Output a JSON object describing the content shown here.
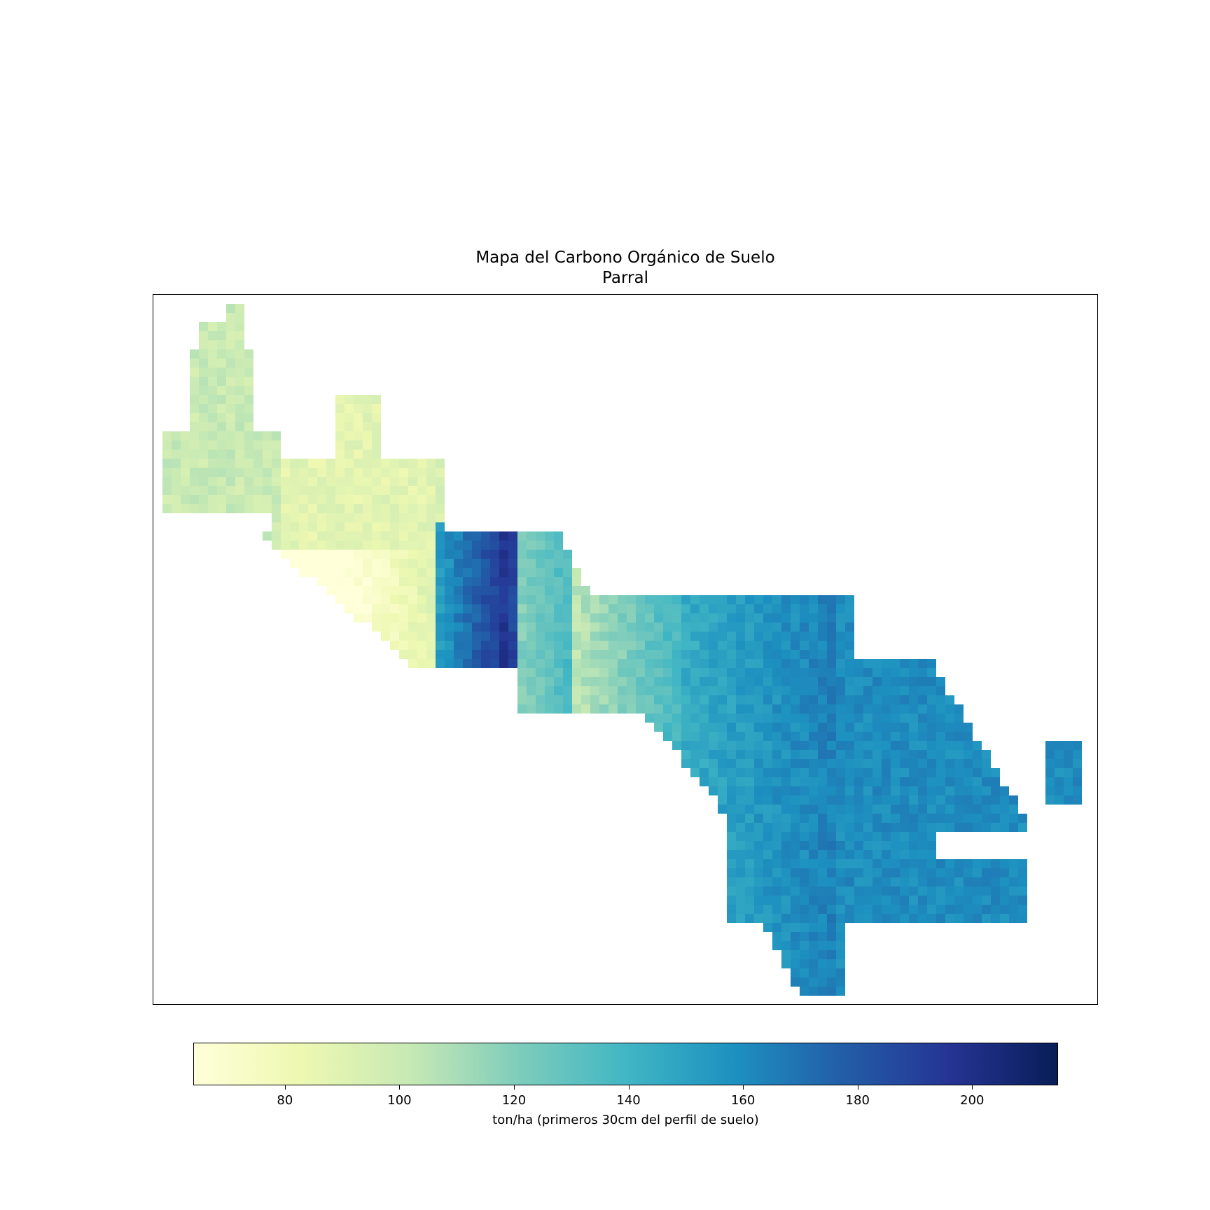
{
  "title": "Mapa del Carbono Orgánico de Suelo",
  "subtitle": "Parral",
  "colorbar": {
    "label": "ton/ha (primeros 30cm del perfil de suelo)",
    "min": 64,
    "max": 215,
    "ticks": [
      80,
      100,
      120,
      140,
      160,
      180,
      200
    ],
    "tick_labels": [
      "80",
      "100",
      "120",
      "140",
      "160",
      "180",
      "200"
    ],
    "colormap": "YlGnBu",
    "stops": [
      "#ffffd9",
      "#edf8b1",
      "#c7e9b4",
      "#7fcdbb",
      "#41b6c4",
      "#1d91c0",
      "#225ea8",
      "#253494",
      "#081d58"
    ]
  },
  "chart_data": {
    "type": "heatmap",
    "title": "Mapa del Carbono Orgánico de Suelo\nParral",
    "colorbar_label": "ton/ha (primeros 30cm del perfil de suelo)",
    "value_range": [
      64,
      215
    ],
    "regions": [
      {
        "area": "northwest lobe",
        "value": 100
      },
      {
        "area": "west-central lowland",
        "value": 88
      },
      {
        "area": "central valley band",
        "value": 92
      },
      {
        "area": "central ridge (darkest)",
        "value": 200
      },
      {
        "area": "east-central slopes",
        "value": 140
      },
      {
        "area": "southeast lowland",
        "value": 162
      },
      {
        "area": "southeast core",
        "value": 175
      },
      {
        "area": "eastern spur",
        "value": 150
      }
    ]
  }
}
